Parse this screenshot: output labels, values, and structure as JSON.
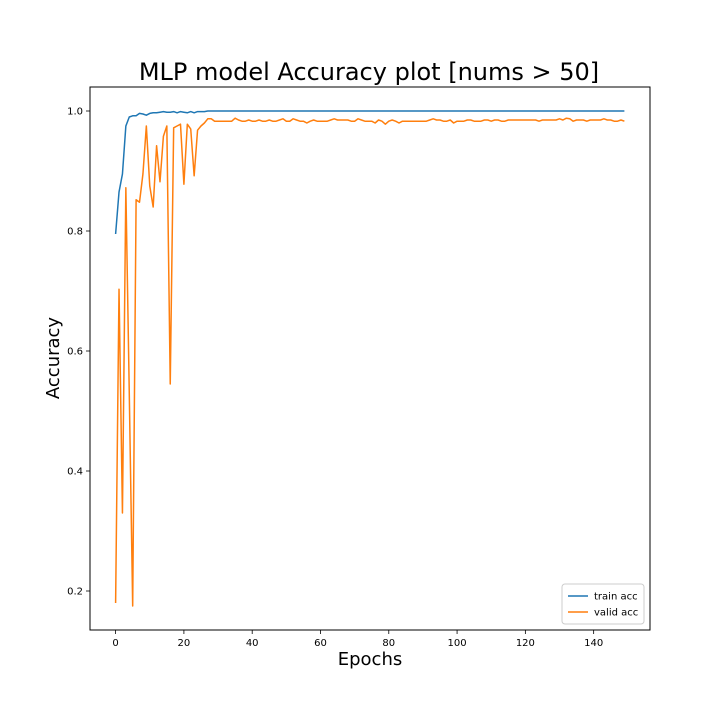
{
  "chart_data": {
    "type": "line",
    "title": "MLP model Accuracy plot [nums > 50]",
    "xlabel": "Epochs",
    "ylabel": "Accuracy",
    "xlim": [
      -7.5,
      156.5
    ],
    "ylim": [
      0.135,
      1.04
    ],
    "xticks": [
      0,
      20,
      40,
      60,
      80,
      100,
      120,
      140
    ],
    "xtick_labels": [
      "0",
      "20",
      "40",
      "60",
      "80",
      "100",
      "120",
      "140"
    ],
    "yticks": [
      0.2,
      0.4,
      0.6,
      0.8,
      1.0
    ],
    "ytick_labels": [
      "0.2",
      "0.4",
      "0.6",
      "0.8",
      "1.0"
    ],
    "grid": false,
    "legend_position": "bottom-right",
    "series": [
      {
        "name": "train acc",
        "color": "#1f77b4",
        "points": [
          [
            0,
            0.795
          ],
          [
            1,
            0.865
          ],
          [
            2,
            0.895
          ],
          [
            3,
            0.975
          ],
          [
            4,
            0.99
          ],
          [
            5,
            0.992
          ],
          [
            6,
            0.992
          ],
          [
            7,
            0.996
          ],
          [
            8,
            0.995
          ],
          [
            9,
            0.993
          ],
          [
            10,
            0.996
          ],
          [
            11,
            0.997
          ],
          [
            12,
            0.997
          ],
          [
            13,
            0.998
          ],
          [
            14,
            0.999
          ],
          [
            15,
            0.998
          ],
          [
            16,
            0.998
          ],
          [
            17,
            0.999
          ],
          [
            18,
            0.997
          ],
          [
            19,
            0.999
          ],
          [
            20,
            0.998
          ],
          [
            21,
            0.997
          ],
          [
            22,
            0.999
          ],
          [
            23,
            0.997
          ],
          [
            24,
            0.999
          ],
          [
            25,
            0.999
          ],
          [
            26,
            0.999
          ],
          [
            27,
            1.0
          ],
          [
            149,
            1.0
          ]
        ]
      },
      {
        "name": "valid acc",
        "color": "#ff7f0e",
        "points": [
          [
            0,
            0.18
          ],
          [
            1,
            0.703
          ],
          [
            2,
            0.33
          ],
          [
            3,
            0.872
          ],
          [
            4,
            0.53
          ],
          [
            5,
            0.175
          ],
          [
            6,
            0.852
          ],
          [
            7,
            0.848
          ],
          [
            8,
            0.895
          ],
          [
            9,
            0.975
          ],
          [
            10,
            0.875
          ],
          [
            11,
            0.84
          ],
          [
            12,
            0.942
          ],
          [
            13,
            0.882
          ],
          [
            14,
            0.958
          ],
          [
            15,
            0.975
          ],
          [
            16,
            0.545
          ],
          [
            17,
            0.972
          ],
          [
            18,
            0.975
          ],
          [
            19,
            0.978
          ],
          [
            20,
            0.878
          ],
          [
            21,
            0.978
          ],
          [
            22,
            0.97
          ],
          [
            23,
            0.892
          ],
          [
            24,
            0.968
          ],
          [
            25,
            0.975
          ],
          [
            26,
            0.98
          ],
          [
            27,
            0.987
          ],
          [
            28,
            0.987
          ],
          [
            29,
            0.983
          ],
          [
            30,
            0.983
          ],
          [
            31,
            0.983
          ],
          [
            32,
            0.983
          ],
          [
            33,
            0.983
          ],
          [
            34,
            0.983
          ],
          [
            35,
            0.988
          ],
          [
            36,
            0.985
          ],
          [
            37,
            0.983
          ],
          [
            38,
            0.983
          ],
          [
            39,
            0.985
          ],
          [
            40,
            0.983
          ],
          [
            41,
            0.983
          ],
          [
            42,
            0.985
          ],
          [
            43,
            0.983
          ],
          [
            44,
            0.983
          ],
          [
            45,
            0.985
          ],
          [
            46,
            0.983
          ],
          [
            47,
            0.983
          ],
          [
            48,
            0.985
          ],
          [
            49,
            0.987
          ],
          [
            50,
            0.983
          ],
          [
            51,
            0.983
          ],
          [
            52,
            0.987
          ],
          [
            53,
            0.985
          ],
          [
            54,
            0.983
          ],
          [
            55,
            0.983
          ],
          [
            56,
            0.98
          ],
          [
            57,
            0.983
          ],
          [
            58,
            0.985
          ],
          [
            59,
            0.983
          ],
          [
            60,
            0.983
          ],
          [
            61,
            0.983
          ],
          [
            62,
            0.983
          ],
          [
            63,
            0.985
          ],
          [
            64,
            0.987
          ],
          [
            65,
            0.985
          ],
          [
            66,
            0.985
          ],
          [
            67,
            0.985
          ],
          [
            68,
            0.985
          ],
          [
            69,
            0.983
          ],
          [
            70,
            0.983
          ],
          [
            71,
            0.987
          ],
          [
            72,
            0.985
          ],
          [
            73,
            0.983
          ],
          [
            74,
            0.983
          ],
          [
            75,
            0.983
          ],
          [
            76,
            0.98
          ],
          [
            77,
            0.985
          ],
          [
            78,
            0.983
          ],
          [
            79,
            0.978
          ],
          [
            80,
            0.983
          ],
          [
            81,
            0.985
          ],
          [
            82,
            0.983
          ],
          [
            83,
            0.98
          ],
          [
            84,
            0.983
          ],
          [
            85,
            0.983
          ],
          [
            86,
            0.983
          ],
          [
            87,
            0.983
          ],
          [
            88,
            0.983
          ],
          [
            89,
            0.983
          ],
          [
            90,
            0.983
          ],
          [
            91,
            0.983
          ],
          [
            92,
            0.985
          ],
          [
            93,
            0.987
          ],
          [
            94,
            0.985
          ],
          [
            95,
            0.985
          ],
          [
            96,
            0.983
          ],
          [
            97,
            0.983
          ],
          [
            98,
            0.985
          ],
          [
            99,
            0.98
          ],
          [
            100,
            0.983
          ],
          [
            101,
            0.983
          ],
          [
            102,
            0.983
          ],
          [
            103,
            0.985
          ],
          [
            104,
            0.985
          ],
          [
            105,
            0.983
          ],
          [
            106,
            0.983
          ],
          [
            107,
            0.983
          ],
          [
            108,
            0.985
          ],
          [
            109,
            0.985
          ],
          [
            110,
            0.983
          ],
          [
            111,
            0.985
          ],
          [
            112,
            0.985
          ],
          [
            113,
            0.983
          ],
          [
            114,
            0.983
          ],
          [
            115,
            0.985
          ],
          [
            116,
            0.985
          ],
          [
            117,
            0.985
          ],
          [
            118,
            0.985
          ],
          [
            119,
            0.985
          ],
          [
            120,
            0.985
          ],
          [
            121,
            0.985
          ],
          [
            122,
            0.985
          ],
          [
            123,
            0.985
          ],
          [
            124,
            0.983
          ],
          [
            125,
            0.985
          ],
          [
            126,
            0.985
          ],
          [
            127,
            0.985
          ],
          [
            128,
            0.985
          ],
          [
            129,
            0.985
          ],
          [
            130,
            0.987
          ],
          [
            131,
            0.985
          ],
          [
            132,
            0.988
          ],
          [
            133,
            0.987
          ],
          [
            134,
            0.983
          ],
          [
            135,
            0.985
          ],
          [
            136,
            0.985
          ],
          [
            137,
            0.985
          ],
          [
            138,
            0.983
          ],
          [
            139,
            0.985
          ],
          [
            140,
            0.985
          ],
          [
            141,
            0.985
          ],
          [
            142,
            0.985
          ],
          [
            143,
            0.987
          ],
          [
            144,
            0.985
          ],
          [
            145,
            0.985
          ],
          [
            146,
            0.983
          ],
          [
            147,
            0.983
          ],
          [
            148,
            0.985
          ],
          [
            149,
            0.983
          ]
        ]
      }
    ]
  }
}
